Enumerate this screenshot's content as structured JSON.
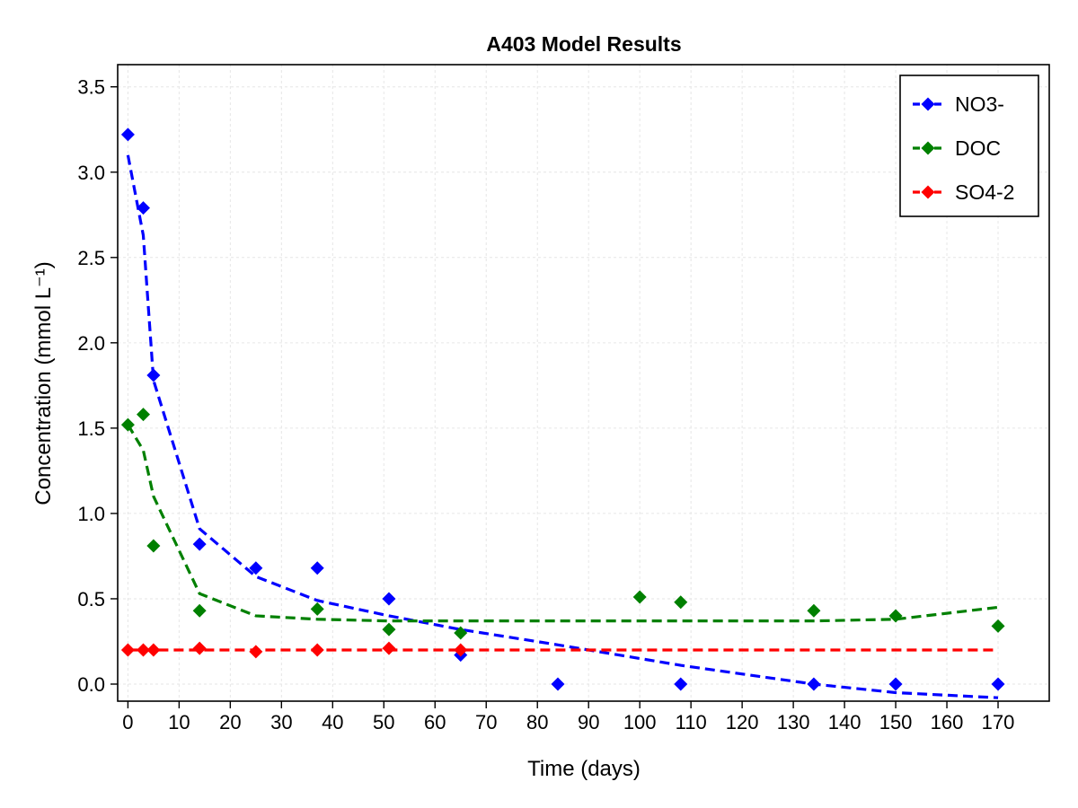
{
  "chart_data": {
    "type": "scatter",
    "title": "A403 Model Results",
    "xlabel": "Time (days)",
    "ylabel": "Concentration (mmol L⁻¹)",
    "xlim": [
      -2,
      180
    ],
    "ylim": [
      -0.1,
      3.63
    ],
    "xticks": [
      0,
      10,
      20,
      30,
      40,
      50,
      60,
      70,
      80,
      90,
      100,
      110,
      120,
      130,
      140,
      150,
      160,
      170
    ],
    "yticks": [
      0.0,
      0.5,
      1.0,
      1.5,
      2.0,
      2.5,
      3.0,
      3.5
    ],
    "ytick_labels": [
      "0.0",
      "0.5",
      "1.0",
      "1.5",
      "2.0",
      "2.5",
      "3.0",
      "3.5"
    ],
    "grid": true,
    "legend_position": "top-right",
    "series": [
      {
        "name": "NO3-",
        "color": "#0000ff",
        "marker": "diamond",
        "observed": {
          "x": [
            0,
            3,
            5,
            14,
            25,
            37,
            51,
            65,
            84,
            108,
            134,
            150,
            170
          ],
          "y": [
            3.22,
            2.79,
            1.81,
            0.82,
            0.68,
            0.68,
            0.5,
            0.17,
            0.0,
            0.0,
            0.0,
            0.0,
            0.0
          ]
        },
        "model": {
          "x": [
            0,
            3,
            5,
            14,
            25,
            37,
            51,
            65,
            84,
            108,
            134,
            150,
            170
          ],
          "y": [
            3.1,
            2.63,
            1.78,
            0.91,
            0.63,
            0.49,
            0.4,
            0.32,
            0.23,
            0.11,
            0.0,
            -0.05,
            -0.08
          ]
        }
      },
      {
        "name": "DOC",
        "color": "#008000",
        "marker": "diamond",
        "observed": {
          "x": [
            0,
            3,
            5,
            14,
            37,
            51,
            65,
            100,
            108,
            134,
            150,
            170
          ],
          "y": [
            1.52,
            1.58,
            0.81,
            0.43,
            0.44,
            0.32,
            0.3,
            0.51,
            0.48,
            0.43,
            0.4,
            0.34
          ]
        },
        "model": {
          "x": [
            0,
            3,
            5,
            14,
            25,
            37,
            51,
            65,
            84,
            108,
            134,
            150,
            170
          ],
          "y": [
            1.52,
            1.37,
            1.1,
            0.53,
            0.4,
            0.38,
            0.37,
            0.37,
            0.37,
            0.37,
            0.37,
            0.38,
            0.45
          ]
        }
      },
      {
        "name": "SO4-2",
        "color": "#ff0000",
        "marker": "diamond",
        "observed": {
          "x": [
            0,
            3,
            5,
            14,
            25,
            37,
            51,
            65
          ],
          "y": [
            0.2,
            0.2,
            0.2,
            0.21,
            0.19,
            0.2,
            0.21,
            0.2
          ]
        },
        "model": {
          "x": [
            0,
            3,
            5,
            14,
            25,
            37,
            51,
            65,
            84,
            108,
            134,
            150,
            170
          ],
          "y": [
            0.2,
            0.2,
            0.2,
            0.2,
            0.2,
            0.2,
            0.2,
            0.2,
            0.2,
            0.2,
            0.2,
            0.2,
            0.2
          ]
        }
      }
    ]
  }
}
